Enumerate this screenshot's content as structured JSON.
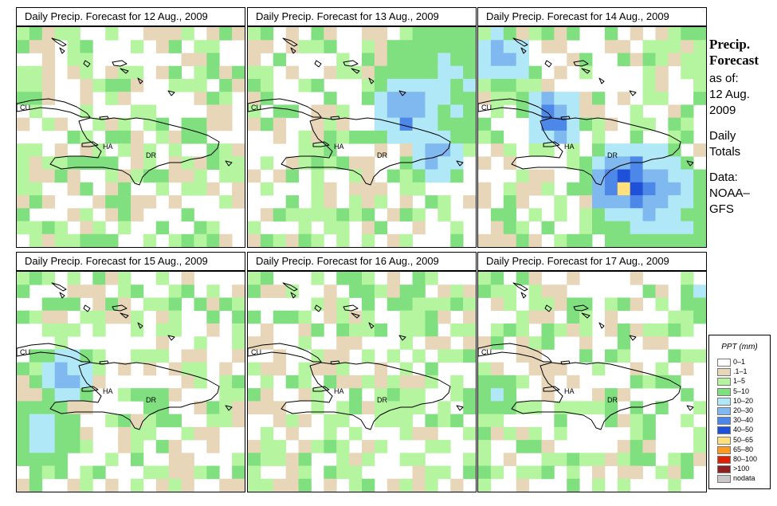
{
  "panels": [
    {
      "title": "Daily Precip. Forecast for  12 Aug., 2009"
    },
    {
      "title": "Daily Precip. Forecast for  13 Aug., 2009"
    },
    {
      "title": "Daily Precip. Forecast for  14 Aug., 2009"
    },
    {
      "title": "Daily Precip. Forecast for  15 Aug., 2009"
    },
    {
      "title": "Daily Precip. Forecast for  16 Aug., 2009"
    },
    {
      "title": "Daily Precip. Forecast for  17 Aug., 2009"
    }
  ],
  "map_labels": {
    "cuba": "CU",
    "haiti": "HA",
    "dominican_republic": "DR"
  },
  "sidebar": {
    "title_line1": "Precip.",
    "title_line2": "Forecast",
    "asof_label": "as of:",
    "date_line1": "12 Aug.",
    "date_line2": "2009",
    "totals_line1": "Daily",
    "totals_line2": "Totals",
    "data_line1": "Data:",
    "data_line2": "NOAA–",
    "data_line3": "GFS"
  },
  "legend": {
    "title": "PPT (mm)",
    "items": [
      {
        "label": "0–1",
        "color": "#ffffff"
      },
      {
        "label": ".1–1",
        "color": "#e8d6b9"
      },
      {
        "label": "1–5",
        "color": "#b5f5a0"
      },
      {
        "label": "5–10",
        "color": "#80e080"
      },
      {
        "label": "10–20",
        "color": "#b0e8f8"
      },
      {
        "label": "20–30",
        "color": "#80b8f0"
      },
      {
        "label": "30–40",
        "color": "#4d88e8"
      },
      {
        "label": "40–50",
        "color": "#1e50d8"
      },
      {
        "label": "50–65",
        "color": "#ffe07a"
      },
      {
        "label": "65–80",
        "color": "#ff9a1e"
      },
      {
        "label": "80–100",
        "color": "#e02000"
      },
      {
        "label": ">100",
        "color": "#902020"
      },
      {
        "label": "nodata",
        "color": "#c8c8c8"
      }
    ]
  }
}
